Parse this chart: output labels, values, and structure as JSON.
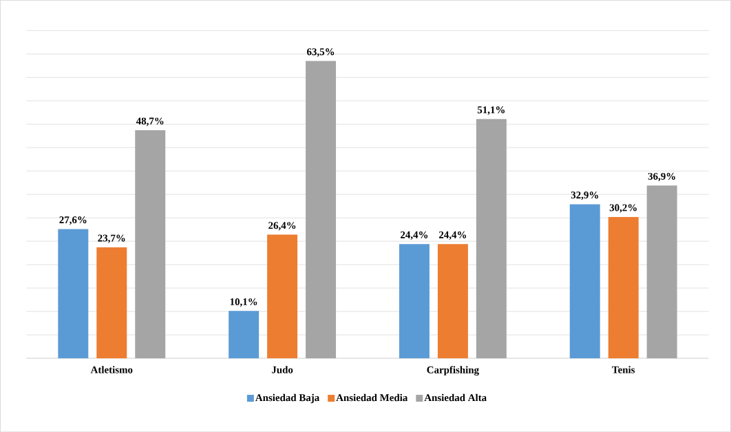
{
  "chart_data": {
    "type": "bar",
    "categories": [
      "Atletismo",
      "Judo",
      "Carpfishing",
      "Tenis"
    ],
    "series": [
      {
        "name": "Ansiedad Baja",
        "color": "#5b9bd5",
        "values": [
          27.6,
          10.1,
          24.4,
          32.9
        ],
        "value_labels": [
          "27,6%",
          "10,1%",
          "24,4%",
          "32,9%"
        ]
      },
      {
        "name": "Ansiedad Media",
        "color": "#ed7d31",
        "values": [
          23.7,
          26.4,
          24.4,
          30.2
        ],
        "value_labels": [
          "23,7%",
          "26,4%",
          "24,4%",
          "30,2%"
        ]
      },
      {
        "name": "Ansiedad Alta",
        "color": "#a5a5a5",
        "values": [
          48.7,
          63.5,
          51.1,
          36.9
        ],
        "value_labels": [
          "48,7%",
          "63,5%",
          "51,1%",
          "36,9%"
        ]
      }
    ],
    "ylim": [
      0,
      70
    ],
    "grid": "y",
    "legend": "bottom",
    "tick_labels": "x"
  }
}
